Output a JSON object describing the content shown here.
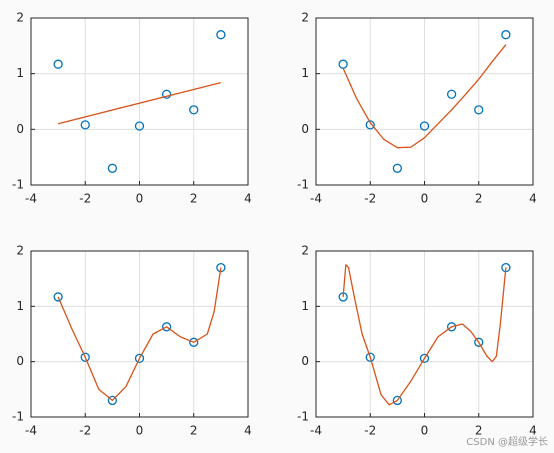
{
  "chart_data": [
    {
      "type": "line",
      "xlim": [
        -4,
        4
      ],
      "ylim": [
        -1,
        2
      ],
      "xticks": [
        -4,
        -2,
        0,
        2,
        4
      ],
      "yticks": [
        -1,
        0,
        1,
        2
      ],
      "grid": true,
      "series": [
        {
          "marker": "circle",
          "color": "#0072bd",
          "x": [
            -3,
            -2,
            -1,
            0,
            1,
            2,
            3
          ],
          "values": [
            1.17,
            0.08,
            -0.7,
            0.06,
            0.63,
            0.35,
            1.7
          ]
        },
        {
          "marker": "none",
          "color": "#d95319",
          "x": [
            -3,
            3
          ],
          "values": [
            0.1,
            0.84
          ]
        }
      ]
    },
    {
      "type": "line",
      "xlim": [
        -4,
        4
      ],
      "ylim": [
        -1,
        2
      ],
      "xticks": [
        -4,
        -2,
        0,
        2,
        4
      ],
      "yticks": [
        -1,
        0,
        1,
        2
      ],
      "grid": true,
      "series": [
        {
          "marker": "circle",
          "color": "#0072bd",
          "x": [
            -3,
            -2,
            -1,
            0,
            1,
            2,
            3
          ],
          "values": [
            1.17,
            0.08,
            -0.7,
            0.06,
            0.63,
            0.35,
            1.7
          ]
        },
        {
          "marker": "none",
          "color": "#d95319",
          "x": [
            -3,
            -2.5,
            -2,
            -1.5,
            -1,
            -0.5,
            0,
            0.5,
            1,
            1.5,
            2,
            2.5,
            3
          ],
          "values": [
            1.1,
            0.55,
            0.12,
            -0.18,
            -0.33,
            -0.32,
            -0.15,
            0.1,
            0.35,
            0.62,
            0.9,
            1.22,
            1.52
          ]
        }
      ]
    },
    {
      "type": "line",
      "xlim": [
        -4,
        4
      ],
      "ylim": [
        -1,
        2
      ],
      "xticks": [
        -4,
        -2,
        0,
        2,
        4
      ],
      "yticks": [
        -1,
        0,
        1,
        2
      ],
      "grid": true,
      "series": [
        {
          "marker": "circle",
          "color": "#0072bd",
          "x": [
            -3,
            -2,
            -1,
            0,
            1,
            2,
            3
          ],
          "values": [
            1.17,
            0.08,
            -0.7,
            0.06,
            0.63,
            0.35,
            1.7
          ]
        },
        {
          "marker": "none",
          "color": "#d95319",
          "x": [
            -3,
            -2.5,
            -2,
            -1.5,
            -1,
            -0.5,
            0,
            0.5,
            1,
            1.5,
            2,
            2.5,
            2.75,
            3
          ],
          "values": [
            1.17,
            0.6,
            0.08,
            -0.5,
            -0.7,
            -0.45,
            0.06,
            0.5,
            0.63,
            0.45,
            0.35,
            0.5,
            0.9,
            1.7
          ]
        }
      ]
    },
    {
      "type": "line",
      "xlim": [
        -4,
        4
      ],
      "ylim": [
        -1,
        2
      ],
      "xticks": [
        -4,
        -2,
        0,
        2,
        4
      ],
      "yticks": [
        -1,
        0,
        1,
        2
      ],
      "grid": true,
      "series": [
        {
          "marker": "circle",
          "color": "#0072bd",
          "x": [
            -3,
            -2,
            -1,
            0,
            1,
            2,
            3
          ],
          "values": [
            1.17,
            0.08,
            -0.7,
            0.06,
            0.63,
            0.35,
            1.7
          ]
        },
        {
          "marker": "none",
          "color": "#d95319",
          "x": [
            -3,
            -2.9,
            -2.8,
            -2.6,
            -2.3,
            -2,
            -1.6,
            -1.3,
            -1,
            -0.5,
            0,
            0.5,
            1,
            1.4,
            1.7,
            2,
            2.3,
            2.5,
            2.65,
            2.8,
            3
          ],
          "values": [
            1.17,
            1.75,
            1.7,
            1.2,
            0.5,
            0.08,
            -0.6,
            -0.78,
            -0.7,
            -0.35,
            0.06,
            0.45,
            0.63,
            0.68,
            0.55,
            0.35,
            0.1,
            0,
            0.1,
            0.7,
            1.7
          ]
        }
      ]
    }
  ],
  "watermark": "CSDN @超级学长"
}
